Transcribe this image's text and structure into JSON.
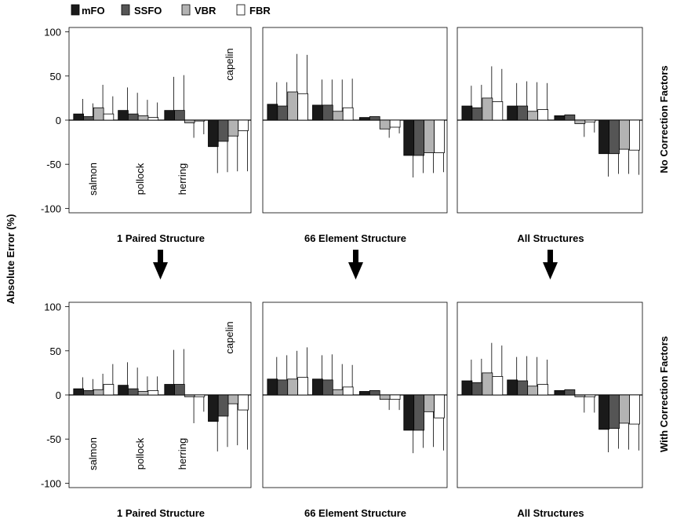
{
  "legend": {
    "items": [
      {
        "label": "mFO",
        "color": "#1a1a1a"
      },
      {
        "label": "SSFO",
        "color": "#555555"
      },
      {
        "label": "VBR",
        "color": "#b3b3b3"
      },
      {
        "label": "FBR",
        "color": "#ffffff"
      }
    ]
  },
  "y_axis_label": "Absolute Error (%)",
  "row_labels": [
    "No Correction Factors",
    "With Correction Factors"
  ],
  "column_labels": [
    "1 Paired Structure",
    "66 Element Structure",
    "All Structures"
  ],
  "species": [
    "salmon",
    "pollock",
    "herring",
    "capelin"
  ],
  "chart_data": [
    {
      "type": "bar",
      "title": "1 Paired Structure",
      "row": "No Correction Factors",
      "ylim": [
        -105,
        105
      ],
      "yticks": [
        -100,
        -50,
        0,
        50,
        100
      ],
      "categories": [
        "salmon",
        "pollock",
        "herring",
        "capelin"
      ],
      "series": [
        {
          "name": "mFO",
          "values": [
            7,
            11,
            11,
            -30
          ],
          "error": [
            17,
            26,
            38,
            30
          ]
        },
        {
          "name": "SSFO",
          "values": [
            4,
            7,
            11,
            -24
          ],
          "error": [
            15,
            24,
            40,
            35
          ]
        },
        {
          "name": "VBR",
          "values": [
            14,
            5,
            -3,
            -18
          ],
          "error": [
            26,
            18,
            17,
            40
          ]
        },
        {
          "name": "FBR",
          "values": [
            7,
            3,
            -1,
            -12
          ],
          "error": [
            20,
            17,
            15,
            46
          ]
        }
      ]
    },
    {
      "type": "bar",
      "title": "66 Element Structure",
      "row": "No Correction Factors",
      "ylim": [
        -105,
        105
      ],
      "yticks": [
        -100,
        -50,
        0,
        50,
        100
      ],
      "categories": [
        "salmon",
        "pollock",
        "herring",
        "capelin"
      ],
      "series": [
        {
          "name": "mFO",
          "values": [
            18,
            17,
            3,
            -40
          ],
          "error": [
            25,
            29,
            0,
            25
          ]
        },
        {
          "name": "SSFO",
          "values": [
            16,
            17,
            4,
            -40
          ],
          "error": [
            27,
            29,
            0,
            20
          ]
        },
        {
          "name": "VBR",
          "values": [
            32,
            10,
            -10,
            -37
          ],
          "error": [
            43,
            36,
            10,
            23
          ]
        },
        {
          "name": "FBR",
          "values": [
            30,
            14,
            -8,
            -37
          ],
          "error": [
            44,
            33,
            7,
            22
          ]
        }
      ]
    },
    {
      "type": "bar",
      "title": "All Structures",
      "row": "No Correction Factors",
      "ylim": [
        -105,
        105
      ],
      "yticks": [
        -100,
        -50,
        0,
        50,
        100
      ],
      "categories": [
        "salmon",
        "pollock",
        "herring",
        "capelin"
      ],
      "series": [
        {
          "name": "mFO",
          "values": [
            16,
            16,
            5,
            -38
          ],
          "error": [
            23,
            26,
            0,
            26
          ]
        },
        {
          "name": "SSFO",
          "values": [
            14,
            16,
            6,
            -38
          ],
          "error": [
            26,
            28,
            0,
            23
          ]
        },
        {
          "name": "VBR",
          "values": [
            25,
            10,
            -4,
            -33
          ],
          "error": [
            36,
            33,
            15,
            28
          ]
        },
        {
          "name": "FBR",
          "values": [
            21,
            12,
            -2,
            -34
          ],
          "error": [
            37,
            30,
            12,
            28
          ]
        }
      ]
    },
    {
      "type": "bar",
      "title": "1 Paired Structure",
      "row": "With Correction Factors",
      "ylim": [
        -105,
        105
      ],
      "yticks": [
        -100,
        -50,
        0,
        50,
        100
      ],
      "categories": [
        "salmon",
        "pollock",
        "herring",
        "capelin"
      ],
      "series": [
        {
          "name": "mFO",
          "values": [
            7,
            11,
            12,
            -30
          ],
          "error": [
            13,
            26,
            39,
            34
          ]
        },
        {
          "name": "SSFO",
          "values": [
            5,
            7,
            12,
            -24
          ],
          "error": [
            13,
            24,
            40,
            35
          ]
        },
        {
          "name": "VBR",
          "values": [
            6,
            4,
            -2,
            -10
          ],
          "error": [
            18,
            17,
            30,
            47
          ]
        },
        {
          "name": "FBR",
          "values": [
            12,
            5,
            -2,
            -17
          ],
          "error": [
            23,
            16,
            17,
            45
          ]
        }
      ]
    },
    {
      "type": "bar",
      "title": "66 Element Structure",
      "row": "With Correction Factors",
      "ylim": [
        -105,
        105
      ],
      "yticks": [
        -100,
        -50,
        0,
        50,
        100
      ],
      "categories": [
        "salmon",
        "pollock",
        "herring",
        "capelin"
      ],
      "series": [
        {
          "name": "mFO",
          "values": [
            18,
            18,
            4,
            -40
          ],
          "error": [
            25,
            27,
            0,
            26
          ]
        },
        {
          "name": "SSFO",
          "values": [
            17,
            17,
            5,
            -40
          ],
          "error": [
            28,
            29,
            0,
            20
          ]
        },
        {
          "name": "VBR",
          "values": [
            18,
            6,
            -5,
            -19
          ],
          "error": [
            32,
            29,
            12,
            40
          ]
        },
        {
          "name": "FBR",
          "values": [
            20,
            9,
            -5,
            -26
          ],
          "error": [
            34,
            25,
            12,
            37
          ]
        }
      ]
    },
    {
      "type": "bar",
      "title": "All Structures",
      "row": "With Correction Factors",
      "ylim": [
        -105,
        105
      ],
      "yticks": [
        -100,
        -50,
        0,
        50,
        100
      ],
      "categories": [
        "salmon",
        "pollock",
        "herring",
        "capelin"
      ],
      "series": [
        {
          "name": "mFO",
          "values": [
            16,
            17,
            5,
            -39
          ],
          "error": [
            24,
            26,
            0,
            26
          ]
        },
        {
          "name": "SSFO",
          "values": [
            14,
            16,
            6,
            -38
          ],
          "error": [
            27,
            28,
            0,
            23
          ]
        },
        {
          "name": "VBR",
          "values": [
            25,
            10,
            -2,
            -32
          ],
          "error": [
            34,
            33,
            18,
            30
          ]
        },
        {
          "name": "FBR",
          "values": [
            21,
            12,
            -2,
            -33
          ],
          "error": [
            35,
            28,
            18,
            30
          ]
        }
      ]
    }
  ]
}
